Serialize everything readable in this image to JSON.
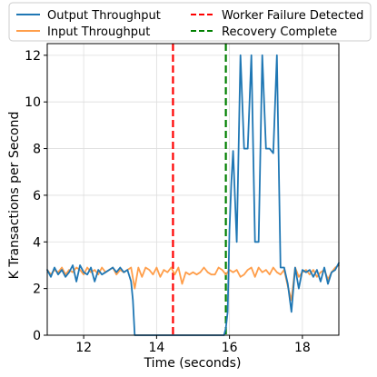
{
  "chart_data": {
    "type": "line",
    "title": "",
    "xlabel": "Time (seconds)",
    "ylabel": "K Transactions per Second",
    "xlim": [
      11.0,
      19.0
    ],
    "ylim": [
      0,
      12.5
    ],
    "xticks": [
      12,
      14,
      16,
      18
    ],
    "yticks": [
      0,
      2,
      4,
      6,
      8,
      10,
      12
    ],
    "grid": true,
    "legend": {
      "placement": "top",
      "columns": 2
    },
    "series": [
      {
        "name": "Output Throughput",
        "color": "#1f77b4",
        "x": [
          11.0,
          11.1,
          11.2,
          11.3,
          11.4,
          11.5,
          11.6,
          11.7,
          11.8,
          11.9,
          12.0,
          12.1,
          12.2,
          12.3,
          12.4,
          12.5,
          12.6,
          12.7,
          12.8,
          12.9,
          13.0,
          13.1,
          13.2,
          13.3,
          13.35,
          13.4,
          14.0,
          15.0,
          15.85,
          15.9,
          15.95,
          16.0,
          16.05,
          16.1,
          16.2,
          16.3,
          16.4,
          16.5,
          16.6,
          16.7,
          16.8,
          16.9,
          17.0,
          17.1,
          17.2,
          17.3,
          17.4,
          17.5,
          17.6,
          17.7,
          17.8,
          17.9,
          18.0,
          18.1,
          18.2,
          18.3,
          18.4,
          18.5,
          18.6,
          18.7,
          18.8,
          18.9,
          19.0
        ],
        "y": [
          2.8,
          2.5,
          2.9,
          2.6,
          2.8,
          2.5,
          2.7,
          3.0,
          2.3,
          3.0,
          2.7,
          2.6,
          2.9,
          2.3,
          2.8,
          2.6,
          2.7,
          2.8,
          2.9,
          2.7,
          2.9,
          2.7,
          2.8,
          2.3,
          1.5,
          0.0,
          0.0,
          0.0,
          0.0,
          0.3,
          1.0,
          4.5,
          6.5,
          7.9,
          4.0,
          12.0,
          8.0,
          8.0,
          12.0,
          4.0,
          4.0,
          12.0,
          8.0,
          8.0,
          7.8,
          12.0,
          2.9,
          2.9,
          2.2,
          1.0,
          2.9,
          2.0,
          2.8,
          2.7,
          2.8,
          2.5,
          2.8,
          2.3,
          2.9,
          2.2,
          2.7,
          2.8,
          3.1
        ]
      },
      {
        "name": "Input Throughput",
        "color": "#ff9e4a",
        "x": [
          11.0,
          11.1,
          11.2,
          11.3,
          11.4,
          11.5,
          11.6,
          11.7,
          11.8,
          11.9,
          12.0,
          12.1,
          12.2,
          12.3,
          12.4,
          12.5,
          12.6,
          12.7,
          12.8,
          12.9,
          13.0,
          13.1,
          13.2,
          13.3,
          13.4,
          13.5,
          13.6,
          13.7,
          13.8,
          13.9,
          14.0,
          14.1,
          14.2,
          14.3,
          14.4,
          14.5,
          14.6,
          14.7,
          14.8,
          14.9,
          15.0,
          15.1,
          15.2,
          15.3,
          15.4,
          15.5,
          15.6,
          15.7,
          15.8,
          15.9,
          16.0,
          16.1,
          16.2,
          16.3,
          16.4,
          16.5,
          16.6,
          16.7,
          16.8,
          16.9,
          17.0,
          17.1,
          17.2,
          17.3,
          17.4,
          17.5,
          17.6,
          17.7,
          17.8,
          17.9,
          18.0,
          18.1,
          18.2,
          18.3,
          18.4,
          18.5,
          18.6,
          18.7,
          18.8,
          18.9,
          19.0
        ],
        "y": [
          2.8,
          2.6,
          2.8,
          2.7,
          2.9,
          2.6,
          2.8,
          2.7,
          2.9,
          2.8,
          2.6,
          2.9,
          2.7,
          2.8,
          2.6,
          2.9,
          2.7,
          2.8,
          2.9,
          2.6,
          2.8,
          2.7,
          2.8,
          2.9,
          2.0,
          2.9,
          2.5,
          2.9,
          2.8,
          2.6,
          2.9,
          2.5,
          2.8,
          2.7,
          2.9,
          2.6,
          2.9,
          2.2,
          2.7,
          2.6,
          2.7,
          2.6,
          2.7,
          2.9,
          2.7,
          2.6,
          2.6,
          2.9,
          2.8,
          2.6,
          2.8,
          2.7,
          2.8,
          2.5,
          2.6,
          2.8,
          2.9,
          2.5,
          2.9,
          2.7,
          2.8,
          2.6,
          2.9,
          2.7,
          2.6,
          2.8,
          2.1,
          1.5,
          2.9,
          2.5,
          2.7,
          2.8,
          2.6,
          2.8,
          2.5,
          2.7,
          2.8,
          2.4,
          2.7,
          2.9,
          3.0
        ]
      }
    ],
    "vlines": [
      {
        "name": "Worker Failure Detected",
        "x": 14.45,
        "color": "#ff0000",
        "style": "dashed"
      },
      {
        "name": "Recovery Complete",
        "x": 15.9,
        "color": "#008000",
        "style": "dashed"
      }
    ]
  }
}
